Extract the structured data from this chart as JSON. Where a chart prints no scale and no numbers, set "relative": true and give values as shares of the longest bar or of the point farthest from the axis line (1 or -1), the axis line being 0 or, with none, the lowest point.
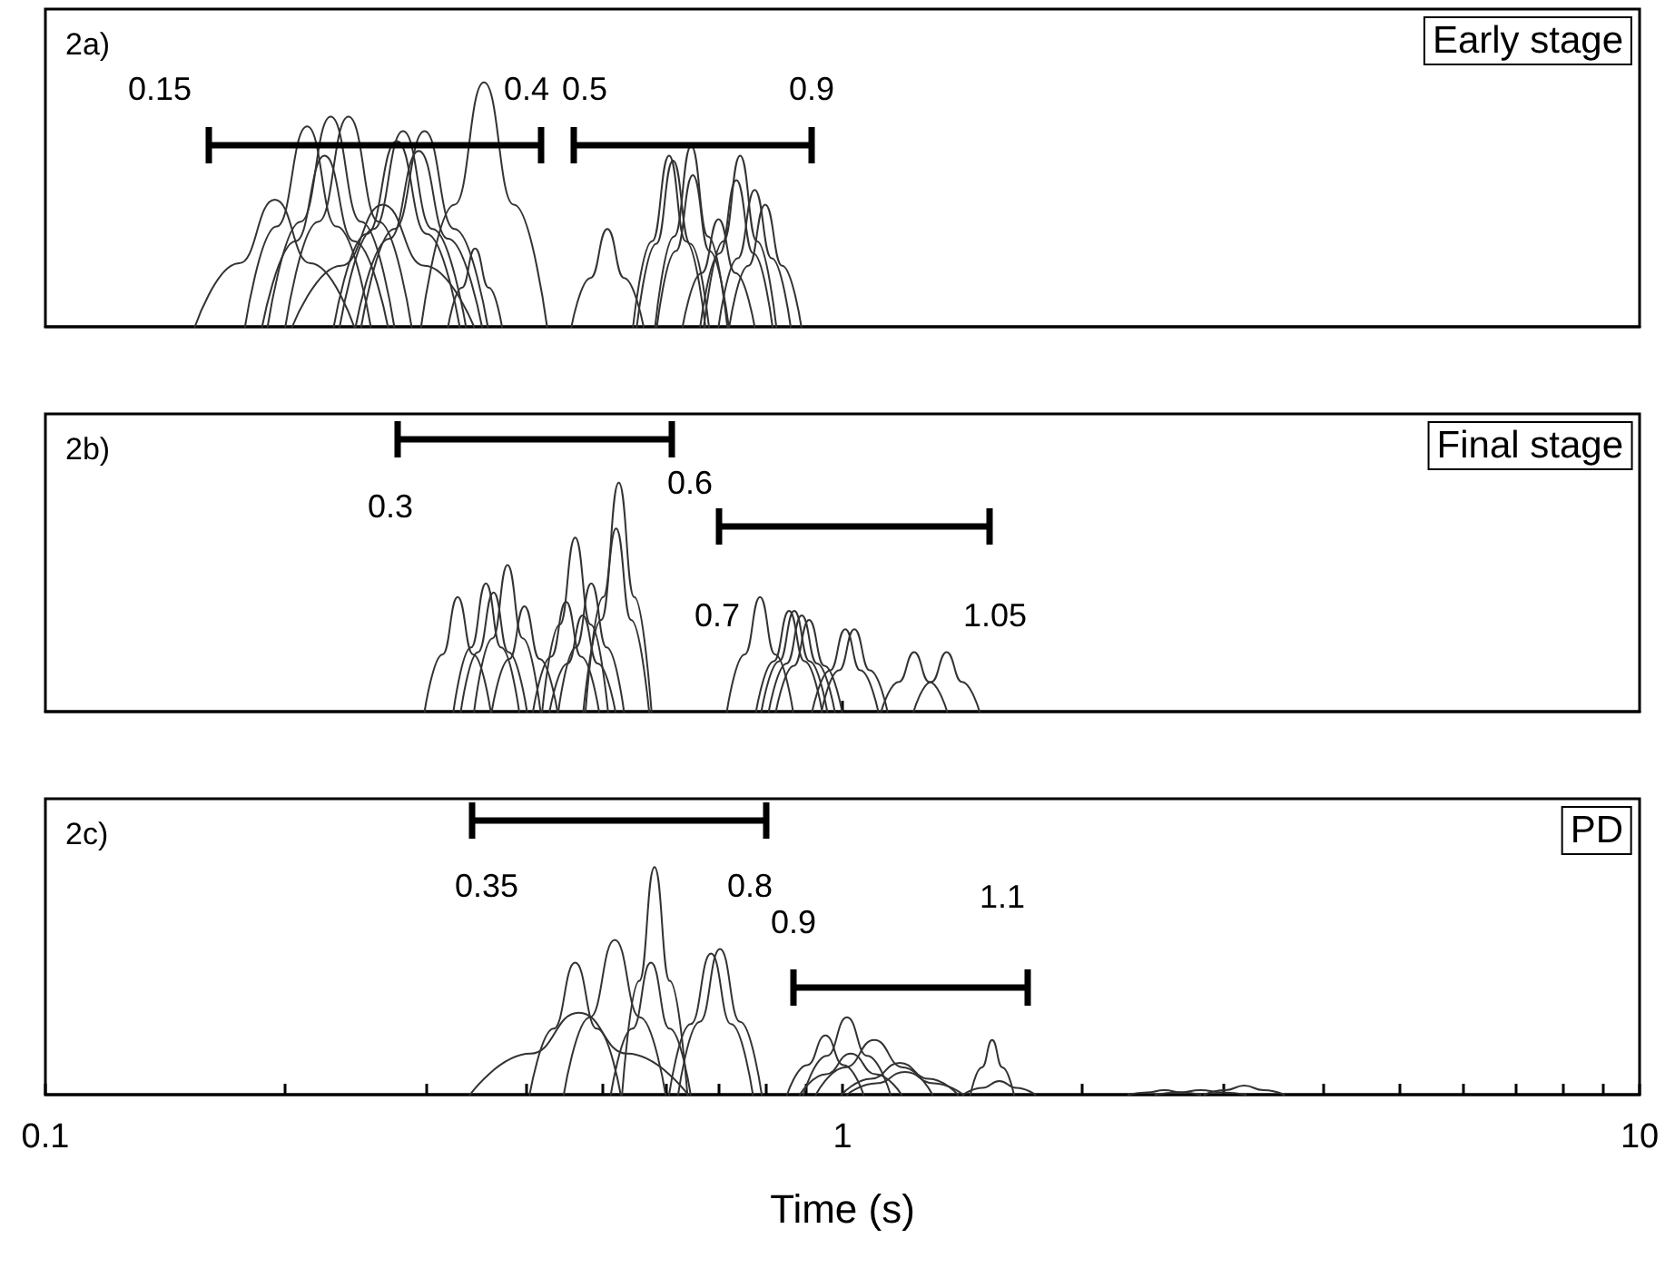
{
  "chart_data": [
    {
      "type": "line",
      "relative": true,
      "title": "2a)",
      "subtitle": "Early stage",
      "log": "x",
      "xlim": [
        0.1,
        10
      ],
      "tick_labels": false,
      "marker": "none",
      "line_style": "solid",
      "annotations": [
        "0.15",
        "0.4",
        "0.5",
        "0.9"
      ],
      "series": [
        {
          "color": "#333333",
          "x": [
            0.154,
            0.175,
            0.194,
            0.215,
            0.244
          ],
          "values": [
            0,
            0.26,
            0.52,
            0.26,
            0
          ]
        },
        {
          "color": "#333333",
          "x": [
            0.178,
            0.195,
            0.213,
            0.232,
            0.256
          ],
          "values": [
            0,
            0.41,
            0.82,
            0.41,
            0
          ]
        },
        {
          "color": "#333333",
          "x": [
            0.19,
            0.209,
            0.228,
            0.249,
            0.274
          ],
          "values": [
            0,
            0.43,
            0.86,
            0.43,
            0
          ]
        },
        {
          "color": "#333333",
          "x": [
            0.2,
            0.22,
            0.24,
            0.262,
            0.288
          ],
          "values": [
            0,
            0.43,
            0.86,
            0.43,
            0
          ]
        },
        {
          "color": "#333333",
          "x": [
            0.187,
            0.206,
            0.224,
            0.244,
            0.269
          ],
          "values": [
            0,
            0.35,
            0.7,
            0.35,
            0
          ]
        },
        {
          "color": "#333333",
          "x": [
            0.204,
            0.235,
            0.265,
            0.299,
            0.345
          ],
          "values": [
            0,
            0.25,
            0.5,
            0.25,
            0
          ]
        },
        {
          "color": "#333333",
          "x": [
            0.234,
            0.258,
            0.281,
            0.306,
            0.337
          ],
          "values": [
            0,
            0.4,
            0.8,
            0.4,
            0
          ]
        },
        {
          "color": "#333333",
          "x": [
            0.23,
            0.253,
            0.276,
            0.301,
            0.331
          ],
          "values": [
            0,
            0.38,
            0.76,
            0.38,
            0
          ]
        },
        {
          "color": "#333333",
          "x": [
            0.249,
            0.274,
            0.299,
            0.326,
            0.359
          ],
          "values": [
            0,
            0.4,
            0.8,
            0.4,
            0
          ]
        },
        {
          "color": "#333333",
          "x": [
            0.245,
            0.27,
            0.294,
            0.32,
            0.353
          ],
          "values": [
            0,
            0.36,
            0.72,
            0.36,
            0
          ]
        },
        {
          "color": "#333333",
          "x": [
            0.296,
            0.326,
            0.355,
            0.387,
            0.426
          ],
          "values": [
            0,
            0.5,
            1,
            0.5,
            0
          ]
        },
        {
          "color": "#333333",
          "x": [
            0.32,
            0.333,
            0.346,
            0.36,
            0.374
          ],
          "values": [
            0,
            0.16,
            0.32,
            0.16,
            0
          ]
        },
        {
          "color": "#333333",
          "x": [
            0.457,
            0.483,
            0.507,
            0.532,
            0.563
          ],
          "values": [
            0,
            0.2,
            0.4,
            0.2,
            0
          ]
        },
        {
          "color": "#333333",
          "x": [
            0.546,
            0.577,
            0.606,
            0.636,
            0.673
          ],
          "values": [
            0,
            0.35,
            0.7,
            0.35,
            0
          ]
        },
        {
          "color": "#333333",
          "x": [
            0.552,
            0.584,
            0.613,
            0.644,
            0.68
          ],
          "values": [
            0,
            0.34,
            0.68,
            0.34,
            0
          ]
        },
        {
          "color": "#333333",
          "x": [
            0.582,
            0.615,
            0.646,
            0.678,
            0.717
          ],
          "values": [
            0,
            0.37,
            0.74,
            0.37,
            0
          ]
        },
        {
          "color": "#333333",
          "x": [
            0.585,
            0.618,
            0.649,
            0.681,
            0.72
          ],
          "values": [
            0,
            0.31,
            0.62,
            0.31,
            0
          ]
        },
        {
          "color": "#333333",
          "x": [
            0.67,
            0.709,
            0.744,
            0.781,
            0.826
          ],
          "values": [
            0,
            0.35,
            0.7,
            0.35,
            0
          ]
        },
        {
          "color": "#333333",
          "x": [
            0.663,
            0.701,
            0.736,
            0.773,
            0.817
          ],
          "values": [
            0,
            0.3,
            0.6,
            0.3,
            0
          ]
        },
        {
          "color": "#333333",
          "x": [
            0.699,
            0.739,
            0.776,
            0.815,
            0.861
          ],
          "values": [
            0,
            0.28,
            0.56,
            0.28,
            0
          ]
        },
        {
          "color": "#333333",
          "x": [
            0.721,
            0.762,
            0.8,
            0.84,
            0.888
          ],
          "values": [
            0,
            0.25,
            0.5,
            0.25,
            0
          ]
        },
        {
          "color": "#333333",
          "x": [
            0.63,
            0.666,
            0.699,
            0.734,
            0.776
          ],
          "values": [
            0,
            0.22,
            0.44,
            0.22,
            0
          ]
        }
      ]
    },
    {
      "type": "line",
      "relative": true,
      "title": "2b)",
      "subtitle": "Final stage",
      "log": "x",
      "xlim": [
        0.1,
        10
      ],
      "xticks": [
        {
          "value": 1,
          "label": null
        }
      ],
      "tick_labels": false,
      "marker": "none",
      "line_style": "solid",
      "annotations": [
        "0.3",
        "0.6",
        "0.7",
        "1.05"
      ],
      "series": [
        {
          "color": "#333333",
          "x": [
            0.299,
            0.315,
            0.329,
            0.344,
            0.362
          ],
          "values": [
            0,
            0.25,
            0.5,
            0.25,
            0
          ]
        },
        {
          "color": "#333333",
          "x": [
            0.325,
            0.342,
            0.357,
            0.373,
            0.393
          ],
          "values": [
            0,
            0.28,
            0.56,
            0.28,
            0
          ]
        },
        {
          "color": "#333333",
          "x": [
            0.345,
            0.364,
            0.38,
            0.397,
            0.418
          ],
          "values": [
            0,
            0.32,
            0.64,
            0.32,
            0
          ]
        },
        {
          "color": "#333333",
          "x": [
            0.332,
            0.349,
            0.365,
            0.381,
            0.402
          ],
          "values": [
            0,
            0.26,
            0.52,
            0.26,
            0
          ]
        },
        {
          "color": "#333333",
          "x": [
            0.363,
            0.382,
            0.399,
            0.417,
            0.439
          ],
          "values": [
            0,
            0.23,
            0.46,
            0.23,
            0
          ]
        },
        {
          "color": "#333333",
          "x": [
            0.42,
            0.442,
            0.462,
            0.483,
            0.508
          ],
          "values": [
            0,
            0.38,
            0.76,
            0.38,
            0
          ]
        },
        {
          "color": "#333333",
          "x": [
            0.409,
            0.431,
            0.45,
            0.47,
            0.495
          ],
          "values": [
            0,
            0.24,
            0.48,
            0.24,
            0
          ]
        },
        {
          "color": "#333333",
          "x": [
            0.44,
            0.463,
            0.484,
            0.506,
            0.532
          ],
          "values": [
            0,
            0.28,
            0.56,
            0.28,
            0
          ]
        },
        {
          "color": "#333333",
          "x": [
            0.429,
            0.452,
            0.472,
            0.493,
            0.519
          ],
          "values": [
            0,
            0.21,
            0.42,
            0.21,
            0
          ]
        },
        {
          "color": "#333333",
          "x": [
            0.476,
            0.501,
            0.524,
            0.548,
            0.576
          ],
          "values": [
            0,
            0.5,
            1,
            0.5,
            0
          ]
        },
        {
          "color": "#333333",
          "x": [
            0.473,
            0.498,
            0.52,
            0.543,
            0.572
          ],
          "values": [
            0,
            0.4,
            0.8,
            0.4,
            0
          ]
        },
        {
          "color": "#333333",
          "x": [
            0.716,
            0.754,
            0.788,
            0.823,
            0.867
          ],
          "values": [
            0,
            0.25,
            0.5,
            0.25,
            0
          ]
        },
        {
          "color": "#333333",
          "x": [
            0.779,
            0.82,
            0.857,
            0.896,
            0.943
          ],
          "values": [
            0,
            0.22,
            0.44,
            0.22,
            0
          ]
        },
        {
          "color": "#333333",
          "x": [
            0.791,
            0.833,
            0.87,
            0.909,
            0.957
          ],
          "values": [
            0,
            0.22,
            0.44,
            0.22,
            0
          ]
        },
        {
          "color": "#333333",
          "x": [
            0.808,
            0.851,
            0.889,
            0.929,
            0.978
          ],
          "values": [
            0,
            0.21,
            0.42,
            0.21,
            0
          ]
        },
        {
          "color": "#333333",
          "x": [
            0.825,
            0.869,
            0.908,
            0.949,
            0.999
          ],
          "values": [
            0,
            0.2,
            0.4,
            0.2,
            0
          ]
        },
        {
          "color": "#333333",
          "x": [
            0.916,
            0.965,
            1.008,
            1.053,
            1.109
          ],
          "values": [
            0,
            0.18,
            0.36,
            0.18,
            0
          ]
        },
        {
          "color": "#333333",
          "x": [
            0.941,
            0.99,
            1.035,
            1.082,
            1.139
          ],
          "values": [
            0,
            0.18,
            0.36,
            0.18,
            0
          ]
        },
        {
          "color": "#333333",
          "x": [
            1.118,
            1.177,
            1.23,
            1.285,
            1.353
          ],
          "values": [
            0,
            0.13,
            0.26,
            0.13,
            0
          ]
        },
        {
          "color": "#333333",
          "x": [
            1.228,
            1.293,
            1.351,
            1.412,
            1.486
          ],
          "values": [
            0,
            0.13,
            0.26,
            0.13,
            0
          ]
        }
      ]
    },
    {
      "type": "line",
      "relative": true,
      "title": "2c)",
      "subtitle": "PD",
      "xlabel": "Time (s)",
      "log": "x",
      "xlim": [
        0.1,
        10
      ],
      "tick_labels": "x",
      "marker": "none",
      "line_style": "solid",
      "xticks": [
        0.1,
        {
          "value": 0.2,
          "label": null
        },
        {
          "value": 0.3,
          "label": null
        },
        {
          "value": 0.4,
          "label": null
        },
        {
          "value": 0.5,
          "label": null
        },
        {
          "value": 0.6,
          "label": null
        },
        {
          "value": 0.7,
          "label": null
        },
        {
          "value": 0.8,
          "label": null
        },
        {
          "value": 0.9,
          "label": null
        },
        1,
        {
          "value": 2,
          "label": null
        },
        {
          "value": 3,
          "label": null
        },
        {
          "value": 4,
          "label": null
        },
        {
          "value": 5,
          "label": null
        },
        {
          "value": 6,
          "label": null
        },
        {
          "value": 7,
          "label": null
        },
        {
          "value": 8,
          "label": null
        },
        {
          "value": 9,
          "label": null
        },
        10
      ],
      "annotations": [
        "0.35",
        "0.8",
        "0.9",
        "1.1"
      ],
      "series": [
        {
          "color": "#333333",
          "x": [
            0.341,
            0.406,
            0.467,
            0.537,
            0.64
          ],
          "values": [
            0,
            0.18,
            0.36,
            0.18,
            0
          ]
        },
        {
          "color": "#333333",
          "x": [
            0.405,
            0.434,
            0.462,
            0.492,
            0.527
          ],
          "values": [
            0,
            0.29,
            0.58,
            0.29,
            0
          ]
        },
        {
          "color": "#333333",
          "x": [
            0.447,
            0.482,
            0.518,
            0.557,
            0.6
          ],
          "values": [
            0,
            0.34,
            0.68,
            0.34,
            0
          ]
        },
        {
          "color": "#333333",
          "x": [
            0.512,
            0.545,
            0.575,
            0.607,
            0.645
          ],
          "values": [
            0,
            0.29,
            0.58,
            0.29,
            0
          ]
        },
        {
          "color": "#333333",
          "x": [
            0.529,
            0.556,
            0.581,
            0.607,
            0.639
          ],
          "values": [
            0,
            0.5,
            1,
            0.5,
            0
          ]
        },
        {
          "color": "#333333",
          "x": [
            0.606,
            0.645,
            0.684,
            0.725,
            0.772
          ],
          "values": [
            0,
            0.31,
            0.62,
            0.31,
            0
          ]
        },
        {
          "color": "#333333",
          "x": [
            0.622,
            0.662,
            0.702,
            0.744,
            0.792
          ],
          "values": [
            0,
            0.32,
            0.64,
            0.32,
            0
          ]
        },
        {
          "color": "#333333",
          "x": [
            0.852,
            0.903,
            0.952,
            1.003,
            1.063
          ],
          "values": [
            0,
            0.13,
            0.26,
            0.13,
            0
          ]
        },
        {
          "color": "#333333",
          "x": [
            0.893,
            0.956,
            1.013,
            1.074,
            1.149
          ],
          "values": [
            0,
            0.17,
            0.34,
            0.17,
            0
          ]
        },
        {
          "color": "#333333",
          "x": [
            0.884,
            0.953,
            1.024,
            1.101,
            1.186
          ],
          "values": [
            0,
            0.09,
            0.18,
            0.09,
            0
          ]
        },
        {
          "color": "#333333",
          "x": [
            0.926,
            1.008,
            1.096,
            1.191,
            1.297
          ],
          "values": [
            0,
            0.12,
            0.24,
            0.12,
            0
          ]
        },
        {
          "color": "#333333",
          "x": [
            0.997,
            1.086,
            1.18,
            1.283,
            1.396
          ],
          "values": [
            0,
            0.07,
            0.14,
            0.07,
            0
          ]
        },
        {
          "color": "#333333",
          "x": [
            1.013,
            1.102,
            1.198,
            1.302,
            1.417
          ],
          "values": [
            0,
            0.05,
            0.1,
            0.05,
            0
          ]
        },
        {
          "color": "#333333",
          "x": [
            1.447,
            1.496,
            1.541,
            1.587,
            1.641
          ],
          "values": [
            0,
            0.12,
            0.24,
            0.12,
            0
          ]
        },
        {
          "color": "#333333",
          "x": [
            1.417,
            1.498,
            1.573,
            1.652,
            1.746
          ],
          "values": [
            0,
            0.03,
            0.06,
            0.03,
            0
          ]
        },
        {
          "color": "#333333",
          "x": [
            2.283,
            2.413,
            2.534,
            2.661,
            2.813
          ],
          "values": [
            0,
            0.01,
            0.02,
            0.01,
            0
          ]
        },
        {
          "color": "#333333",
          "x": [
            2.468,
            2.642,
            2.814,
            2.997,
            3.208
          ],
          "values": [
            0,
            0.01,
            0.02,
            0.01,
            0
          ]
        },
        {
          "color": "#333333",
          "x": [
            2.845,
            3.023,
            3.192,
            3.371,
            3.581
          ],
          "values": [
            0,
            0.02,
            0.04,
            0.02,
            0
          ]
        }
      ]
    }
  ]
}
